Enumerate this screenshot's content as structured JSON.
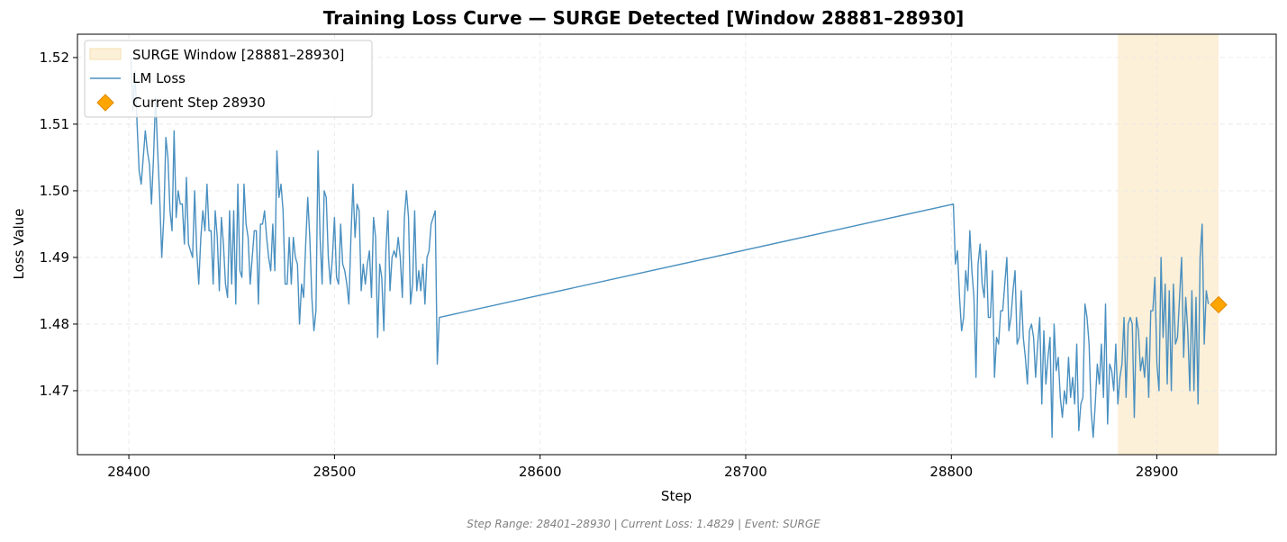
{
  "title": "Training Loss Curve — SURGE Detected [Window 28881–28930]",
  "footer": "Step Range: 28401–28930 | Current Loss: 1.4829 | Event: SURGE",
  "colors": {
    "line": "#4a90c0",
    "window_fill": "#fdf0d8",
    "marker": "#ffa500",
    "marker_edge": "#e08a00",
    "grid": "#e6e6e6"
  },
  "chart_data": {
    "type": "line",
    "title": "Training Loss Curve — SURGE Detected [Window 28881–28930]",
    "xlabel": "Step",
    "ylabel": "Loss Value",
    "xlim": [
      28375,
      28958
    ],
    "ylim": [
      1.4604,
      1.5235
    ],
    "xticks": [
      28400,
      28500,
      28600,
      28700,
      28800,
      28900
    ],
    "yticks": [
      1.47,
      1.48,
      1.49,
      1.5,
      1.51,
      1.52
    ],
    "ytick_labels": [
      "1.47",
      "1.48",
      "1.49",
      "1.50",
      "1.51",
      "1.52"
    ],
    "grid": true,
    "legend_position": "upper-left",
    "surge_window": {
      "label": "SURGE Window [28881–28930]",
      "x0": 28881,
      "x1": 28930
    },
    "series": [
      {
        "name": "LM Loss",
        "segments": [
          {
            "x_start": 28401,
            "values": [
              1.52,
              1.512,
              1.518,
              1.51,
              1.503,
              1.501,
              1.505,
              1.509,
              1.506,
              1.504,
              1.498,
              1.505,
              1.514,
              1.506,
              1.499,
              1.49,
              1.496,
              1.508,
              1.505,
              1.497,
              1.494,
              1.509,
              1.496,
              1.5,
              1.498,
              1.498,
              1.492,
              1.502,
              1.492,
              1.491,
              1.49,
              1.5,
              1.491,
              1.486,
              1.493,
              1.497,
              1.494,
              1.501,
              1.494,
              1.494,
              1.486,
              1.497,
              1.493,
              1.485,
              1.496,
              1.492,
              1.486,
              1.484,
              1.497,
              1.486,
              1.497,
              1.483,
              1.501,
              1.488,
              1.487,
              1.501,
              1.495,
              1.493,
              1.486,
              1.49,
              1.494,
              1.494,
              1.483,
              1.495,
              1.495,
              1.497,
              1.493,
              1.49,
              1.488,
              1.495,
              1.488,
              1.506,
              1.499,
              1.501,
              1.497,
              1.486,
              1.486,
              1.493,
              1.486,
              1.493,
              1.49,
              1.489,
              1.48,
              1.486,
              1.484,
              1.492,
              1.499,
              1.493,
              1.484,
              1.479,
              1.482,
              1.506,
              1.493,
              1.486,
              1.5,
              1.499,
              1.49,
              1.486,
              1.49,
              1.496,
              1.487,
              1.486,
              1.495,
              1.489,
              1.488,
              1.486,
              1.483,
              1.493,
              1.501,
              1.493,
              1.498,
              1.497,
              1.485,
              1.489,
              1.486,
              1.489,
              1.491,
              1.484,
              1.496,
              1.493,
              1.478,
              1.489,
              1.487,
              1.479,
              1.491,
              1.497,
              1.485,
              1.49,
              1.491,
              1.49,
              1.493,
              1.49,
              1.484,
              1.496,
              1.5,
              1.496,
              1.483,
              1.486,
              1.497,
              1.485,
              1.488,
              1.485,
              1.489,
              1.483,
              1.49,
              1.491,
              1.495,
              1.496,
              1.497,
              1.474,
              1.481
            ]
          },
          {
            "x_start": 28801,
            "values": [
              1.498,
              1.489,
              1.491,
              1.484,
              1.479,
              1.481,
              1.488,
              1.485,
              1.494,
              1.488,
              1.484,
              1.472,
              1.489,
              1.492,
              1.486,
              1.484,
              1.491,
              1.481,
              1.481,
              1.488,
              1.472,
              1.478,
              1.477,
              1.482,
              1.482,
              1.486,
              1.49,
              1.479,
              1.481,
              1.485,
              1.488,
              1.477,
              1.478,
              1.485,
              1.478,
              1.475,
              1.471,
              1.479,
              1.48,
              1.478,
              1.472,
              1.477,
              1.481,
              1.468,
              1.479,
              1.471,
              1.475,
              1.478,
              1.463,
              1.48,
              1.473,
              1.475,
              1.469,
              1.466,
              1.47,
              1.468,
              1.475,
              1.469,
              1.472,
              1.468,
              1.477,
              1.464,
              1.468,
              1.469,
              1.483,
              1.481,
              1.477,
              1.467,
              1.463,
              1.468,
              1.474,
              1.471,
              1.477,
              1.469,
              1.483,
              1.465,
              1.474,
              1.473,
              1.47,
              1.477,
              1.468,
              1.472,
              1.474,
              1.481,
              1.469,
              1.48,
              1.481,
              1.48,
              1.466,
              1.481,
              1.479,
              1.473,
              1.475,
              1.472,
              1.478,
              1.469,
              1.482,
              1.482,
              1.487,
              1.474,
              1.47,
              1.49,
              1.478,
              1.486,
              1.471,
              1.485,
              1.47,
              1.486,
              1.477,
              1.478,
              1.484,
              1.49,
              1.475,
              1.484,
              1.479,
              1.47,
              1.485,
              1.47,
              1.484,
              1.468,
              1.49,
              1.495,
              1.477,
              1.485,
              1.483
            ]
          }
        ]
      }
    ],
    "marker": {
      "name": "Current Step 28930",
      "x": 28930,
      "y": 1.4829
    }
  },
  "legend": {
    "window_label": "SURGE Window [28881–28930]",
    "line_label": "LM Loss",
    "marker_label": "Current Step 28930"
  }
}
